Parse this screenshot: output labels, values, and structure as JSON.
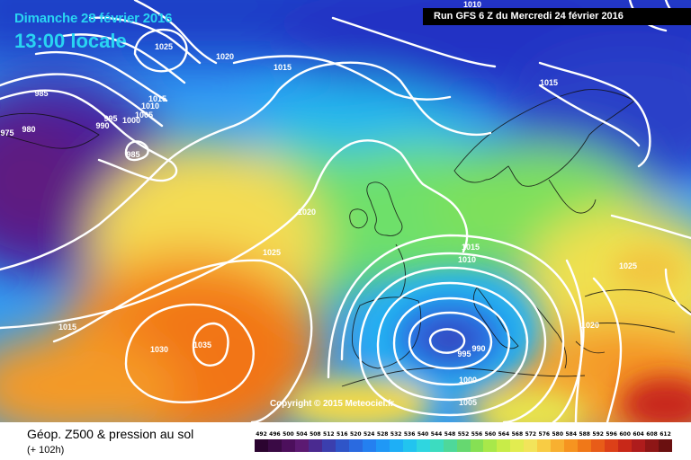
{
  "header": {
    "date": "Dimanche 28 février 2016",
    "time": "13:00 locale",
    "run": "Run GFS 6 Z du Mercredi 24 février 2016"
  },
  "copyright": "Copyright © 2015 Meteociel.fr",
  "legend": {
    "title": "Géop. Z500 & pression au sol",
    "subtitle": "(+ 102h)",
    "scale_values": [
      "492",
      "496",
      "500",
      "504",
      "508",
      "512",
      "516",
      "520",
      "524",
      "528",
      "532",
      "536",
      "540",
      "544",
      "548",
      "552",
      "556",
      "560",
      "564",
      "568",
      "572",
      "576",
      "580",
      "584",
      "588",
      "592",
      "596",
      "600",
      "604",
      "608",
      "612"
    ],
    "scale_colors": [
      "#2b0430",
      "#3a0a45",
      "#4c0f5c",
      "#5c1a72",
      "#4a2a90",
      "#3b3fae",
      "#2f55c8",
      "#2a6ae0",
      "#2480f0",
      "#1f98f6",
      "#1eaff6",
      "#22c4ef",
      "#2fd6e0",
      "#3cdcc0",
      "#4ed89a",
      "#66d870",
      "#86e054",
      "#a8e84a",
      "#c8ec48",
      "#e2ec50",
      "#f2e45a",
      "#f8cc44",
      "#f8b030",
      "#f69420",
      "#f07818",
      "#e85c18",
      "#dc4018",
      "#c82818",
      "#ae1c1c",
      "#8e1616",
      "#6a1010"
    ]
  },
  "pressure_labels": [
    {
      "text": "1025"
    },
    {
      "text": "1020"
    },
    {
      "text": "1015"
    },
    {
      "text": "985"
    },
    {
      "text": "975"
    },
    {
      "text": "980"
    },
    {
      "text": "995"
    },
    {
      "text": "990"
    },
    {
      "text": "1000"
    },
    {
      "text": "1005"
    },
    {
      "text": "1010"
    },
    {
      "text": "1015"
    },
    {
      "text": "985"
    },
    {
      "text": "1020"
    },
    {
      "text": "1025"
    },
    {
      "text": "1015"
    },
    {
      "text": "1030"
    },
    {
      "text": "1035"
    },
    {
      "text": "1015"
    },
    {
      "text": "1015"
    },
    {
      "text": "1010"
    },
    {
      "text": "1025"
    },
    {
      "text": "1020"
    },
    {
      "text": "995"
    },
    {
      "text": "990"
    },
    {
      "text": "1000"
    },
    {
      "text": "1005"
    },
    {
      "text": "1010"
    }
  ]
}
